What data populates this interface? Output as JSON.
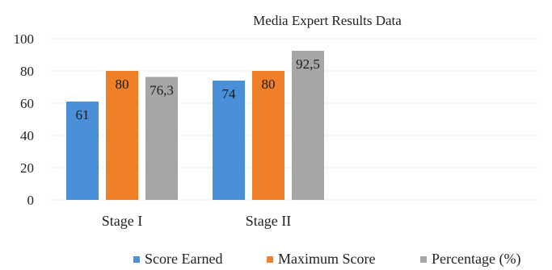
{
  "chart_data": {
    "type": "bar",
    "title": "Media Expert Results Data",
    "categories": [
      "Stage I",
      "Stage II"
    ],
    "series": [
      {
        "name": "Score Earned",
        "values": [
          61,
          74
        ],
        "labels": [
          "61",
          "74"
        ],
        "color": "#4a90d9"
      },
      {
        "name": "Maximum Score",
        "values": [
          80,
          80
        ],
        "labels": [
          "80",
          "80"
        ],
        "color": "#f07f2a"
      },
      {
        "name": "Percentage (%)",
        "values": [
          76.3,
          92.5
        ],
        "labels": [
          "76,3",
          "92,5"
        ],
        "color": "#a6a6a6"
      }
    ],
    "yticks": [
      "0",
      "20",
      "40",
      "60",
      "80",
      "100"
    ],
    "ylim": [
      0,
      100
    ],
    "grid": true,
    "legend_position": "bottom"
  }
}
